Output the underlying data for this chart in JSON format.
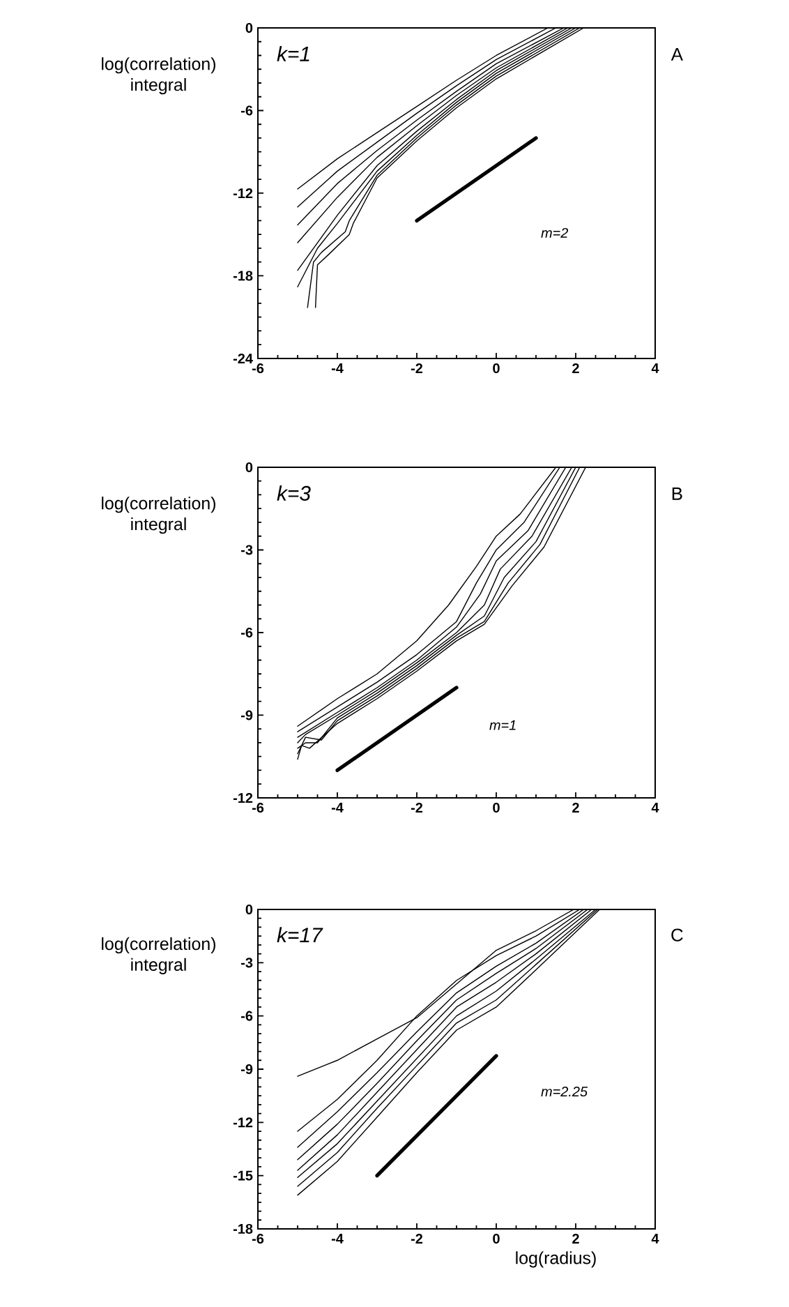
{
  "chart_data": [
    {
      "type": "line",
      "ylabel": "log(correlation) integral",
      "xlim": [
        -6,
        4
      ],
      "ylim": [
        -24,
        0
      ],
      "xticks": [
        -6,
        -4,
        -2,
        0,
        2,
        4
      ],
      "yticks": [
        -24,
        -18,
        -12,
        -6,
        0
      ],
      "annotations": [
        "k=1",
        "m=2",
        "A"
      ],
      "series": [
        {
          "color": "#000000",
          "x": [
            -5,
            -4,
            -3,
            -2,
            -1,
            0,
            1.3
          ],
          "values": [
            -11.7,
            -9.5,
            -7.6,
            -5.7,
            -3.8,
            -2.0,
            0
          ]
        },
        {
          "color": "#000000",
          "x": [
            -5,
            -4,
            -3,
            -2,
            -1,
            0,
            1.5
          ],
          "values": [
            -13.0,
            -10.4,
            -8.3,
            -6.2,
            -4.2,
            -2.3,
            0
          ]
        },
        {
          "color": "#000000",
          "x": [
            -5,
            -4,
            -3,
            -2,
            -1,
            0,
            1.7
          ],
          "values": [
            -14.3,
            -11.3,
            -8.9,
            -6.7,
            -4.6,
            -2.6,
            0
          ]
        },
        {
          "color": "#000000",
          "x": [
            -5,
            -4,
            -3,
            -2,
            -1,
            0,
            1.8
          ],
          "values": [
            -15.6,
            -12.3,
            -9.4,
            -7.1,
            -4.9,
            -2.9,
            0
          ]
        },
        {
          "color": "#000000",
          "x": [
            -5,
            -4,
            -3,
            -2,
            -1,
            0,
            1.9
          ],
          "values": [
            -17.6,
            -13.6,
            -10.0,
            -7.5,
            -5.2,
            -3.1,
            0
          ]
        },
        {
          "color": "#000000",
          "x": [
            -5,
            -4.5,
            -4,
            -3,
            -2,
            -1,
            0,
            2.0
          ],
          "values": [
            -18.8,
            -16,
            -14.2,
            -10.4,
            -7.8,
            -5.4,
            -3.3,
            0
          ]
        },
        {
          "color": "#000000",
          "x": [
            -4.75,
            -4.6,
            -4.4,
            -3.8,
            -3.7,
            -3,
            -2,
            -1,
            0,
            2.1
          ],
          "values": [
            -20.3,
            -17,
            -16.3,
            -14.8,
            -14,
            -10.7,
            -8.0,
            -5.6,
            -3.5,
            0
          ]
        },
        {
          "color": "#000000",
          "x": [
            -4.55,
            -4.5,
            -4.2,
            -3.7,
            -3.6,
            -3,
            -2,
            -1,
            0,
            2.2
          ],
          "values": [
            -20.3,
            -17.2,
            -16.4,
            -15.0,
            -14.2,
            -10.9,
            -8.2,
            -5.8,
            -3.7,
            0
          ]
        },
        {
          "color": "#000000",
          "x": [
            -2,
            1
          ],
          "values": [
            -14,
            -8
          ]
        }
      ]
    },
    {
      "type": "line",
      "ylabel": "log(correlation) integral",
      "xlim": [
        -6,
        4
      ],
      "ylim": [
        -12,
        0
      ],
      "xticks": [
        -6,
        -4,
        -2,
        0,
        2,
        4
      ],
      "yticks": [
        -12,
        -9,
        -6,
        -3,
        0
      ],
      "annotations": [
        "k=3",
        "m=1",
        "B"
      ],
      "series": [
        {
          "color": "#000000",
          "x": [
            -5,
            -4,
            -3,
            -2,
            -1.2,
            -0.5,
            0,
            0.6,
            1.5
          ],
          "values": [
            -9.4,
            -8.4,
            -7.5,
            -6.3,
            -5.0,
            -3.6,
            -2.5,
            -1.7,
            0
          ]
        },
        {
          "color": "#000000",
          "x": [
            -5,
            -4,
            -3,
            -2,
            -1,
            -0.5,
            0,
            0.7,
            1.6
          ],
          "values": [
            -9.6,
            -8.7,
            -7.8,
            -6.8,
            -5.6,
            -4.2,
            -3.0,
            -2.0,
            0
          ]
        },
        {
          "color": "#000000",
          "x": [
            -5,
            -4,
            -3,
            -2,
            -1,
            -0.4,
            0,
            0.8,
            1.75
          ],
          "values": [
            -9.8,
            -8.9,
            -8.0,
            -7.0,
            -5.8,
            -4.6,
            -3.4,
            -2.3,
            0
          ]
        },
        {
          "color": "#000000",
          "x": [
            -5,
            -4.8,
            -4,
            -3,
            -2,
            -1,
            -0.3,
            0.1,
            0.9,
            1.9
          ],
          "values": [
            -10.0,
            -9.7,
            -9.0,
            -8.1,
            -7.1,
            -6.0,
            -5.0,
            -3.7,
            -2.5,
            0
          ]
        },
        {
          "color": "#000000",
          "x": [
            -5,
            -4.8,
            -4.5,
            -4,
            -3,
            -2,
            -1,
            -0.3,
            0.2,
            1,
            2
          ],
          "values": [
            -10.2,
            -10.0,
            -10.0,
            -9.1,
            -8.2,
            -7.2,
            -6.1,
            -5.4,
            -4.0,
            -2.7,
            0
          ]
        },
        {
          "color": "#000000",
          "x": [
            -5,
            -4.8,
            -4.4,
            -4,
            -3,
            -2,
            -1,
            -0.3,
            0.3,
            1.1,
            2.1
          ],
          "values": [
            -10.4,
            -9.8,
            -9.9,
            -9.2,
            -8.3,
            -7.3,
            -6.2,
            -5.6,
            -4.2,
            -2.8,
            0
          ]
        },
        {
          "color": "#000000",
          "x": [
            -5,
            -4.9,
            -4.7,
            -4,
            -3,
            -2,
            -1,
            -0.3,
            0.4,
            1.2,
            2.25
          ],
          "values": [
            -10.6,
            -10.1,
            -10.2,
            -9.3,
            -8.4,
            -7.4,
            -6.3,
            -5.7,
            -4.3,
            -2.9,
            0
          ]
        },
        {
          "color": "#000000",
          "x": [
            -4,
            -1
          ],
          "values": [
            -11,
            -8
          ]
        }
      ]
    },
    {
      "type": "line",
      "ylabel": "log(correlation) integral",
      "xlabel": "log(radius)",
      "xlim": [
        -6,
        4
      ],
      "ylim": [
        -18,
        0
      ],
      "xticks": [
        -6,
        -4,
        -2,
        0,
        2,
        4
      ],
      "yticks": [
        -18,
        -15,
        -12,
        -9,
        -6,
        -3,
        0
      ],
      "annotations": [
        "k=17",
        "m=2.25",
        "C"
      ],
      "series": [
        {
          "color": "#000000",
          "x": [
            -5,
            -4,
            -3,
            -2,
            -1,
            0,
            1,
            1.95
          ],
          "values": [
            -9.4,
            -8.5,
            -7.3,
            -6.1,
            -4.2,
            -2.3,
            -1.2,
            0
          ]
        },
        {
          "color": "#000000",
          "x": [
            -5,
            -4,
            -3,
            -2,
            -1,
            0,
            1,
            2.1
          ],
          "values": [
            -12.5,
            -10.7,
            -8.5,
            -6.0,
            -4.0,
            -2.6,
            -1.5,
            0
          ]
        },
        {
          "color": "#000000",
          "x": [
            -5,
            -4,
            -3,
            -2,
            -1,
            0,
            1,
            2.2
          ],
          "values": [
            -13.4,
            -11.4,
            -9.2,
            -6.9,
            -4.7,
            -3.2,
            -1.9,
            0
          ]
        },
        {
          "color": "#000000",
          "x": [
            -5,
            -4,
            -3,
            -2,
            -1,
            0,
            1,
            2.3
          ],
          "values": [
            -14.1,
            -12.1,
            -9.8,
            -7.4,
            -5.1,
            -3.6,
            -2.2,
            0
          ]
        },
        {
          "color": "#000000",
          "x": [
            -5,
            -4,
            -3,
            -2,
            -1,
            0,
            1,
            2.4
          ],
          "values": [
            -14.7,
            -12.7,
            -10.3,
            -7.9,
            -5.5,
            -4.1,
            -2.5,
            0
          ]
        },
        {
          "color": "#000000",
          "x": [
            -5,
            -4,
            -3,
            -2,
            -1,
            0,
            1,
            2.5
          ],
          "values": [
            -15.1,
            -13.2,
            -10.8,
            -8.4,
            -6.0,
            -4.6,
            -2.8,
            0
          ]
        },
        {
          "color": "#000000",
          "x": [
            -5,
            -4,
            -3,
            -2,
            -1,
            0,
            1,
            2.55
          ],
          "values": [
            -15.6,
            -13.7,
            -11.2,
            -8.8,
            -6.4,
            -5.1,
            -3.1,
            0
          ]
        },
        {
          "color": "#000000",
          "x": [
            -5,
            -4,
            -3,
            -2,
            -1,
            0,
            1,
            2.6
          ],
          "values": [
            -16.1,
            -14.2,
            -11.7,
            -9.2,
            -6.8,
            -5.5,
            -3.4,
            0
          ]
        },
        {
          "color": "#000000",
          "x": [
            -3,
            0
          ],
          "values": [
            -15,
            -8.25
          ]
        }
      ]
    }
  ]
}
